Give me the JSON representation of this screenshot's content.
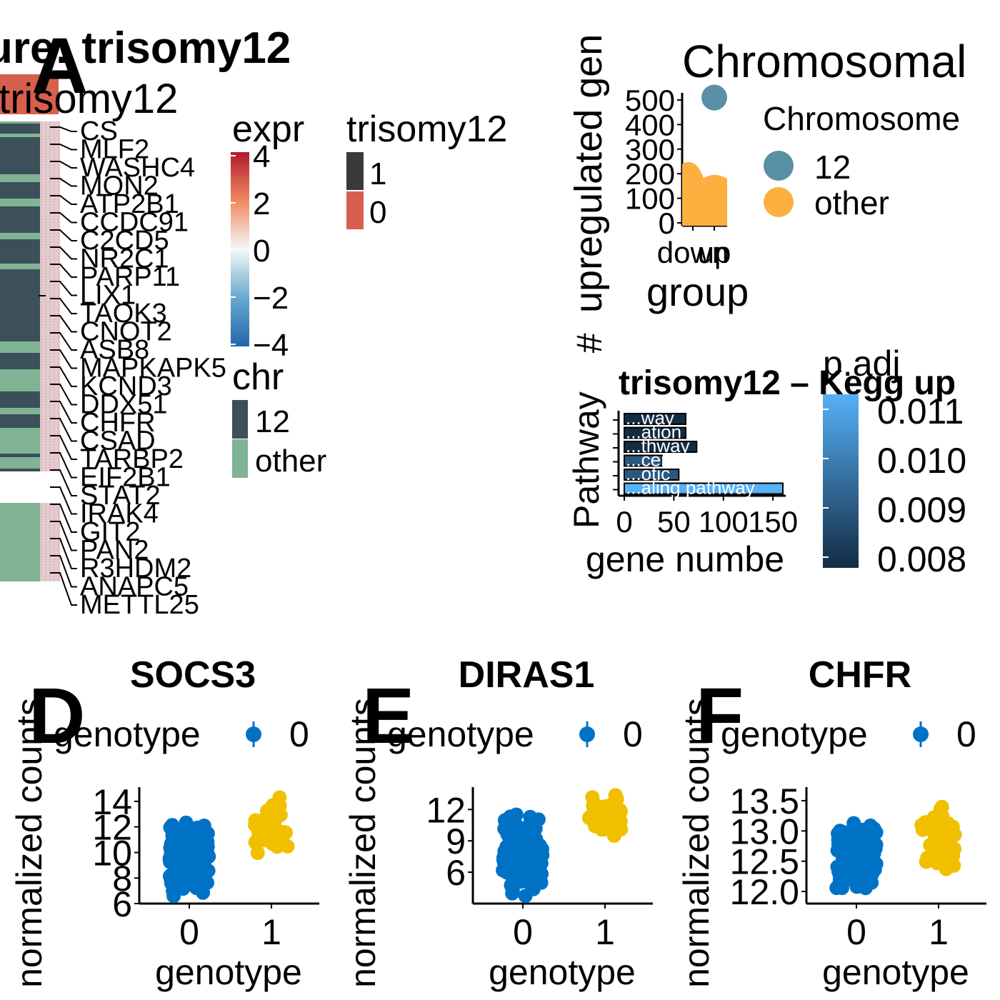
{
  "panels": {
    "a": {
      "letter": "A",
      "title": "ure: trisomy12",
      "annotation_header": "trisomy12",
      "gene_labels": [
        "CS",
        "MLF2",
        "WASHC4",
        "MON2",
        "ATP2B1",
        "CCDC91",
        "C2CD5",
        "NR2C1",
        "PARP11",
        "LIX1",
        "TAOK3",
        "CNOT2",
        "ASB8",
        "MAPKAPK5",
        "KCND3",
        "DDX51",
        "CHFR",
        "CSAD",
        "TARBP2",
        "EIF2B1",
        "STAT2",
        "IRAK4",
        "GIT2",
        "PAN2",
        "R3HDM2",
        "ANAPC5",
        "METTL25"
      ],
      "legend_expr": {
        "title": "expr",
        "ticks": [
          "4",
          "2",
          "0",
          "−2",
          "−4"
        ],
        "colors": [
          "#b2182b",
          "#ef8a62",
          "#f7f7f7",
          "#67a9cf",
          "#2166ac"
        ]
      },
      "legend_trisomy": {
        "title": "trisomy12",
        "items": [
          {
            "label": "1",
            "color": "#3a3a3a"
          },
          {
            "label": "0",
            "color": "#d6604d"
          }
        ]
      },
      "legend_chr": {
        "title": "chr",
        "items": [
          {
            "label": "12",
            "color": "#3b5058"
          },
          {
            "label": "other",
            "color": "#7fb394"
          }
        ]
      }
    },
    "b": {
      "title": "Chromosomal",
      "ylabel": "upregulated gen",
      "ylabel_prefix": "#",
      "xlabel": "group",
      "legend_title": "Chromosome",
      "legend_items": [
        {
          "label": "12",
          "color": "#5a8fa8"
        },
        {
          "label": "other",
          "color": "#fbb040"
        }
      ],
      "chart_data": {
        "type": "bar",
        "categories": [
          "down",
          "up"
        ],
        "yticks": [
          "0",
          "100",
          "200",
          "300",
          "400",
          "500"
        ],
        "ylim": [
          0,
          520
        ],
        "series": [
          {
            "name": "other",
            "values": [
              240,
              180
            ]
          },
          {
            "name": "12",
            "values": [
              510,
              0
            ]
          }
        ]
      }
    },
    "c": {
      "title": "trisomy12 – Kegg up",
      "ylabel": "Pathway",
      "xlabel": "gene numbe",
      "legend_title": "p.adj",
      "legend_ticks": [
        "0.011",
        "0.010",
        "0.009",
        "0.008"
      ],
      "chart_data": {
        "type": "bar",
        "orientation": "horizontal",
        "categories": [
          "...way",
          "...ation",
          "...thway",
          "...cer",
          "...otic",
          "...aling pathway"
        ],
        "values": [
          62,
          62,
          73,
          38,
          55,
          160
        ],
        "padj": [
          0.008,
          0.008,
          0.008,
          0.009,
          0.009,
          0.011
        ],
        "xticks": [
          "0",
          "50",
          "100",
          "150"
        ],
        "xlim": [
          0,
          170
        ]
      }
    },
    "d": {
      "letter": "D",
      "title": "SOCS3",
      "legend_title": "genotype",
      "legend_label": "0",
      "xlabel": "genotype",
      "ylabel": "normalized counts",
      "chart_data": {
        "type": "scatter",
        "categories": [
          "0",
          "1"
        ],
        "yticks": [
          "6",
          "8",
          "10",
          "12",
          "14"
        ],
        "ylim": [
          6,
          15
        ],
        "series": [
          {
            "name": "0",
            "color": "#0072c6",
            "range": [
              6,
              13
            ]
          },
          {
            "name": "1",
            "color": "#f0c000",
            "range": [
              9,
              15
            ]
          }
        ]
      }
    },
    "e": {
      "letter": "E",
      "title": "DIRAS1",
      "legend_title": "genotype",
      "legend_label": "0",
      "xlabel": "genotype",
      "ylabel": "normalized counts",
      "chart_data": {
        "type": "scatter",
        "categories": [
          "0",
          "1"
        ],
        "yticks": [
          "6",
          "9",
          "12"
        ],
        "ylim": [
          3,
          14
        ],
        "series": [
          {
            "name": "0",
            "color": "#0072c6",
            "range": [
              3,
              12
            ]
          },
          {
            "name": "1",
            "color": "#f0c000",
            "range": [
              8,
              14
            ]
          }
        ]
      }
    },
    "f": {
      "letter": "F",
      "title": "CHFR",
      "legend_title": "genotype",
      "legend_label": "0",
      "xlabel": "genotype",
      "ylabel": "normalized counts",
      "chart_data": {
        "type": "scatter",
        "categories": [
          "0",
          "1"
        ],
        "yticks": [
          "12.0",
          "12.5",
          "13.0",
          "13.5"
        ],
        "ylim": [
          11.8,
          13.7
        ],
        "series": [
          {
            "name": "0",
            "color": "#0072c6",
            "range": [
              11.8,
              13.3
            ]
          },
          {
            "name": "1",
            "color": "#f0c000",
            "range": [
              12.1,
              13.7
            ]
          }
        ]
      }
    }
  }
}
